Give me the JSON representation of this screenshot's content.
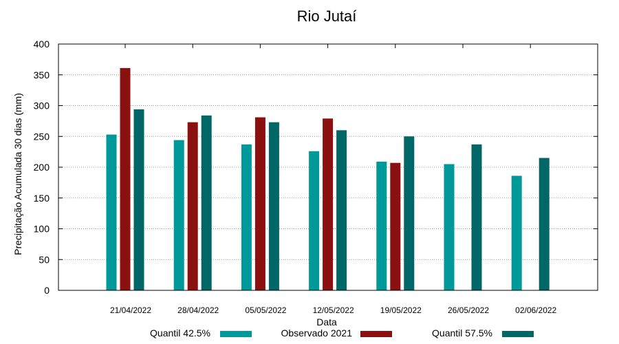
{
  "chart_data": {
    "type": "bar",
    "title": "Rio Jutaí",
    "xlabel": "Data",
    "ylabel": "Precipitação Acumulada 30 dias (mm)",
    "ylim": [
      0,
      400
    ],
    "yticks": [
      "0",
      "50",
      "100",
      "150",
      "200",
      "250",
      "300",
      "350",
      "400"
    ],
    "grid": true,
    "legend_position": "bottom",
    "categories": [
      "21/04/2022",
      "28/04/2022",
      "05/05/2022",
      "12/05/2022",
      "19/05/2022",
      "26/05/2022",
      "02/06/2022"
    ],
    "series": [
      {
        "name": "Quantil 42.5%",
        "color": "#009999",
        "values": [
          253,
          244,
          237,
          226,
          209,
          205,
          186
        ]
      },
      {
        "name": "Observado 2021",
        "color": "#8b1010",
        "values": [
          361,
          273,
          281,
          279,
          207,
          null,
          null
        ]
      },
      {
        "name": "Quantil 57.5%",
        "color": "#006666",
        "values": [
          294,
          284,
          273,
          260,
          250,
          237,
          215
        ]
      }
    ]
  }
}
